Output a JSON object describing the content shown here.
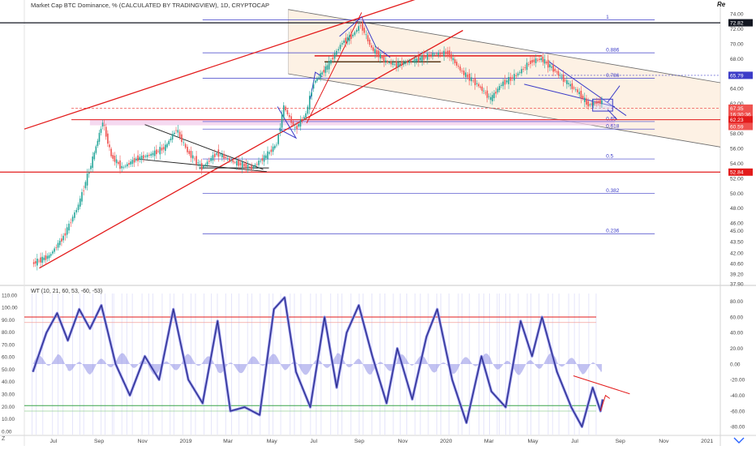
{
  "header": {
    "title": "Market Cap BTC Dominance, % (CALCULATED BY TRADINGVIEW), 1D, CRYPTOCAP",
    "corner_label": "Re"
  },
  "oscillator": {
    "title": "WT (10, 21, 60, 53, -60, -53)"
  },
  "footer": {
    "timezone_label": "Z"
  },
  "colors": {
    "up": "#26a69a",
    "down": "#ef5350",
    "trend": "#e31b1b",
    "fib": "#3c3cc8",
    "channel_fill": "#fce5cd",
    "wt_line": "#2c2f8f",
    "wt_hist": "#8f8fe6"
  },
  "chart_data": [
    {
      "type": "candlestick",
      "title": "Market Cap BTC Dominance, % (CALCULATED BY TRADINGVIEW), 1D, CRYPTOCAP",
      "y_axis_labels": [
        "74.00",
        "72.00",
        "70.00",
        "68.00",
        "66.00",
        "64.00",
        "62.00",
        "60.00",
        "58.00",
        "56.00",
        "54.00",
        "52.00",
        "50.00",
        "48.00",
        "46.00",
        "45.00",
        "43.50",
        "42.00",
        "40.60",
        "39.20",
        "37.90"
      ],
      "x_axis_labels": [
        "Jul",
        "Sep",
        "Nov",
        "2019",
        "Mar",
        "May",
        "Jul",
        "Sep",
        "Nov",
        "2020",
        "Mar",
        "May",
        "Jul",
        "Sep",
        "Nov",
        "2021"
      ],
      "ylim": [
        37.9,
        75
      ],
      "price_series": [
        {
          "t": "2018-06-01",
          "close": 40.6
        },
        {
          "t": "2018-06-25",
          "close": 41.6
        },
        {
          "t": "2018-07-15",
          "close": 44.2
        },
        {
          "t": "2018-08-05",
          "close": 48.4
        },
        {
          "t": "2018-08-25",
          "close": 54.6
        },
        {
          "t": "2018-09-08",
          "close": 59.6
        },
        {
          "t": "2018-09-20",
          "close": 55.0
        },
        {
          "t": "2018-10-05",
          "close": 53.4
        },
        {
          "t": "2018-10-25",
          "close": 54.6
        },
        {
          "t": "2018-11-15",
          "close": 55.2
        },
        {
          "t": "2018-12-05",
          "close": 56.2
        },
        {
          "t": "2018-12-20",
          "close": 58.6
        },
        {
          "t": "2019-01-05",
          "close": 55.6
        },
        {
          "t": "2019-01-25",
          "close": 53.4
        },
        {
          "t": "2019-02-15",
          "close": 55.4
        },
        {
          "t": "2019-03-10",
          "close": 54.2
        },
        {
          "t": "2019-04-05",
          "close": 53.4
        },
        {
          "t": "2019-04-25",
          "close": 55.0
        },
        {
          "t": "2019-05-10",
          "close": 56.6
        },
        {
          "t": "2019-05-20",
          "close": 61.6
        },
        {
          "t": "2019-06-05",
          "close": 58.6
        },
        {
          "t": "2019-06-20",
          "close": 60.6
        },
        {
          "t": "2019-07-01",
          "close": 64.8
        },
        {
          "t": "2019-07-20",
          "close": 67.0
        },
        {
          "t": "2019-08-10",
          "close": 70.2
        },
        {
          "t": "2019-08-25",
          "close": 71.2
        },
        {
          "t": "2019-09-05",
          "close": 72.6
        },
        {
          "t": "2019-09-20",
          "close": 69.4
        },
        {
          "t": "2019-10-10",
          "close": 67.6
        },
        {
          "t": "2019-10-25",
          "close": 67.2
        },
        {
          "t": "2019-11-20",
          "close": 67.8
        },
        {
          "t": "2019-12-15",
          "close": 68.6
        },
        {
          "t": "2020-01-05",
          "close": 68.8
        },
        {
          "t": "2020-01-25",
          "close": 66.2
        },
        {
          "t": "2020-02-15",
          "close": 64.6
        },
        {
          "t": "2020-03-05",
          "close": 62.6
        },
        {
          "t": "2020-03-20",
          "close": 64.6
        },
        {
          "t": "2020-04-10",
          "close": 65.8
        },
        {
          "t": "2020-04-30",
          "close": 67.6
        },
        {
          "t": "2020-05-15",
          "close": 68.0
        },
        {
          "t": "2020-06-01",
          "close": 66.6
        },
        {
          "t": "2020-06-20",
          "close": 64.8
        },
        {
          "t": "2020-07-05",
          "close": 63.6
        },
        {
          "t": "2020-07-20",
          "close": 61.8
        },
        {
          "t": "2020-08-01",
          "close": 62.2
        },
        {
          "t": "2020-08-08",
          "close": 62.23
        }
      ],
      "fib_levels": [
        {
          "label": "1",
          "value": 73.2
        },
        {
          "label": "0.886",
          "value": 68.8
        },
        {
          "label": "0.786",
          "value": 65.4
        },
        {
          "label": "0.65",
          "value": 59.6
        },
        {
          "label": "0.618",
          "value": 58.6
        },
        {
          "label": "0.5",
          "value": 54.6
        },
        {
          "label": "0.382",
          "value": 50.0
        },
        {
          "label": "0.236",
          "value": 44.6
        }
      ],
      "price_tags": [
        {
          "label": "72.82",
          "value": 72.82,
          "color": "#131722"
        },
        {
          "label": "65.79",
          "value": 65.79,
          "color": "#3c3cc8"
        },
        {
          "label": "67.35",
          "value": 61.4,
          "color": "#ef5350"
        },
        {
          "label": "16:30:36",
          "value": 60.55,
          "color": "#ef5350"
        },
        {
          "label": "62.23",
          "value": 59.85,
          "color": "#e31b1b"
        },
        {
          "label": "60.59",
          "value": 58.95,
          "color": "#ef5350"
        },
        {
          "label": "52.84",
          "value": 52.84,
          "color": "#e31b1b"
        }
      ],
      "horizontal_lines": [
        {
          "value": 72.82,
          "color": "#131722"
        },
        {
          "value": 52.84,
          "color": "#e31b1b"
        }
      ]
    },
    {
      "type": "line",
      "title": "WT (10, 21, 60, 53, -60, -53)",
      "left_axis_labels": [
        "110.00",
        "100.00",
        "90.00",
        "80.00",
        "70.00",
        "60.00",
        "50.00",
        "40.00",
        "30.00",
        "20.00",
        "10.00",
        "0.00"
      ],
      "right_axis_labels": [
        "80.00",
        "60.00",
        "40.00",
        "20.00",
        "0.00",
        "-20.00",
        "-40.00",
        "-60.00",
        "-80.00"
      ],
      "ylim": [
        -90,
        90
      ],
      "wt_series": [
        {
          "t": "2018-06-01",
          "wt": -10
        },
        {
          "t": "2018-06-20",
          "wt": 40
        },
        {
          "t": "2018-07-05",
          "wt": 65
        },
        {
          "t": "2018-07-20",
          "wt": 30
        },
        {
          "t": "2018-08-05",
          "wt": 70
        },
        {
          "t": "2018-08-20",
          "wt": 45
        },
        {
          "t": "2018-09-05",
          "wt": 75
        },
        {
          "t": "2018-09-25",
          "wt": 0
        },
        {
          "t": "2018-10-15",
          "wt": -40
        },
        {
          "t": "2018-11-05",
          "wt": 10
        },
        {
          "t": "2018-11-25",
          "wt": -20
        },
        {
          "t": "2018-12-15",
          "wt": 70
        },
        {
          "t": "2019-01-05",
          "wt": -20
        },
        {
          "t": "2019-01-25",
          "wt": -50
        },
        {
          "t": "2019-02-15",
          "wt": 55
        },
        {
          "t": "2019-03-05",
          "wt": -60
        },
        {
          "t": "2019-03-25",
          "wt": -55
        },
        {
          "t": "2019-04-15",
          "wt": -65
        },
        {
          "t": "2019-05-05",
          "wt": 70
        },
        {
          "t": "2019-05-20",
          "wt": 85
        },
        {
          "t": "2019-06-05",
          "wt": -10
        },
        {
          "t": "2019-06-25",
          "wt": -55
        },
        {
          "t": "2019-07-15",
          "wt": 60
        },
        {
          "t": "2019-08-01",
          "wt": -30
        },
        {
          "t": "2019-08-15",
          "wt": 40
        },
        {
          "t": "2019-09-01",
          "wt": 75
        },
        {
          "t": "2019-09-20",
          "wt": 10
        },
        {
          "t": "2019-10-10",
          "wt": -50
        },
        {
          "t": "2019-10-25",
          "wt": 20
        },
        {
          "t": "2019-11-15",
          "wt": -45
        },
        {
          "t": "2019-12-05",
          "wt": 35
        },
        {
          "t": "2019-12-20",
          "wt": 70
        },
        {
          "t": "2020-01-10",
          "wt": -20
        },
        {
          "t": "2020-01-30",
          "wt": -75
        },
        {
          "t": "2020-02-20",
          "wt": 10
        },
        {
          "t": "2020-03-05",
          "wt": -35
        },
        {
          "t": "2020-03-25",
          "wt": -55
        },
        {
          "t": "2020-04-15",
          "wt": 55
        },
        {
          "t": "2020-05-01",
          "wt": 10
        },
        {
          "t": "2020-05-15",
          "wt": 60
        },
        {
          "t": "2020-06-05",
          "wt": -10
        },
        {
          "t": "2020-06-25",
          "wt": -55
        },
        {
          "t": "2020-07-10",
          "wt": -80
        },
        {
          "t": "2020-07-25",
          "wt": -30
        },
        {
          "t": "2020-08-05",
          "wt": -60
        },
        {
          "t": "2020-08-08",
          "wt": -45
        }
      ],
      "reference_lines": [
        {
          "value": 60,
          "color": "#e31b1b"
        },
        {
          "value": 53,
          "color": "#f2a09a"
        },
        {
          "value": -53,
          "color": "#3aa34a"
        },
        {
          "value": -60,
          "color": "#9ad29a"
        }
      ]
    }
  ]
}
